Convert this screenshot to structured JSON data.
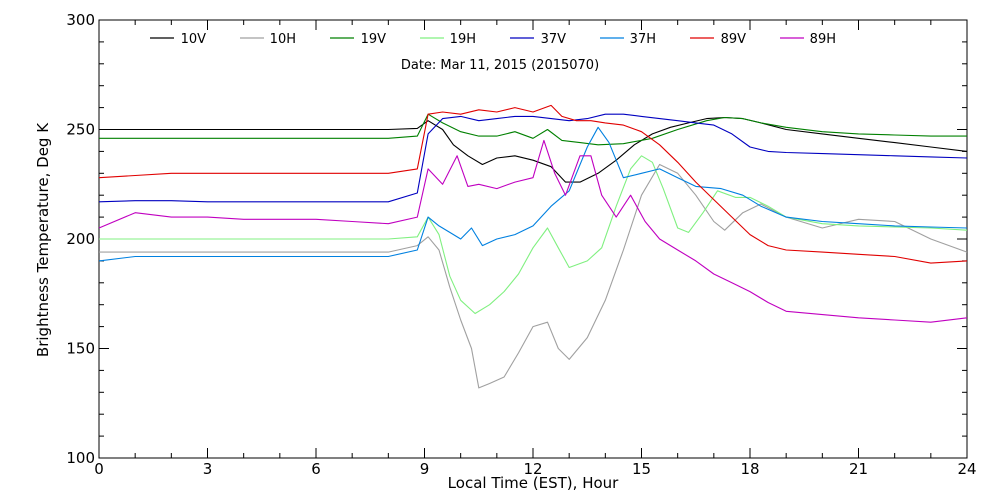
{
  "chart_data": {
    "type": "line",
    "title": "Date: Mar 11, 2015 (2015070)",
    "xlabel": "Local Time (EST), Hour",
    "ylabel": "Brightness Temperature, Deg K",
    "xlim": [
      0,
      24
    ],
    "ylim": [
      100,
      300
    ],
    "xticks": [
      0,
      3,
      6,
      9,
      12,
      15,
      18,
      21,
      24
    ],
    "yticks": [
      100,
      150,
      200,
      250,
      300
    ],
    "grid": false,
    "legend_position": "top",
    "series": [
      {
        "name": "10V",
        "color": "#000000",
        "points": [
          [
            0,
            250
          ],
          [
            1,
            250
          ],
          [
            2,
            250
          ],
          [
            3,
            250
          ],
          [
            4,
            250
          ],
          [
            5,
            250
          ],
          [
            6,
            250
          ],
          [
            7,
            250
          ],
          [
            8,
            250
          ],
          [
            8.8,
            250.5
          ],
          [
            9.1,
            254
          ],
          [
            9.5,
            250
          ],
          [
            9.8,
            243
          ],
          [
            10.2,
            238
          ],
          [
            10.6,
            234
          ],
          [
            11,
            237
          ],
          [
            11.5,
            238
          ],
          [
            12,
            236
          ],
          [
            12.5,
            233
          ],
          [
            12.9,
            226
          ],
          [
            13.3,
            226
          ],
          [
            13.8,
            230
          ],
          [
            14.3,
            236
          ],
          [
            14.8,
            243
          ],
          [
            15.3,
            248
          ],
          [
            15.8,
            251
          ],
          [
            16.3,
            253
          ],
          [
            16.8,
            255
          ],
          [
            17.3,
            255.5
          ],
          [
            17.8,
            255
          ],
          [
            18.3,
            253
          ],
          [
            19,
            250
          ],
          [
            20,
            248
          ],
          [
            21,
            246
          ],
          [
            22,
            244
          ],
          [
            23,
            242
          ],
          [
            24,
            240
          ]
        ]
      },
      {
        "name": "10H",
        "color": "#a0a0a0",
        "points": [
          [
            0,
            194
          ],
          [
            1,
            194
          ],
          [
            2,
            194
          ],
          [
            3,
            194
          ],
          [
            4,
            194
          ],
          [
            5,
            194
          ],
          [
            6,
            194
          ],
          [
            7,
            194
          ],
          [
            8,
            194
          ],
          [
            8.8,
            197
          ],
          [
            9.1,
            201
          ],
          [
            9.4,
            195
          ],
          [
            9.7,
            178
          ],
          [
            10,
            163
          ],
          [
            10.3,
            150
          ],
          [
            10.5,
            132
          ],
          [
            10.8,
            134
          ],
          [
            11.2,
            137
          ],
          [
            11.6,
            148
          ],
          [
            12,
            160
          ],
          [
            12.4,
            162
          ],
          [
            12.7,
            150
          ],
          [
            13,
            145
          ],
          [
            13.5,
            155
          ],
          [
            14,
            172
          ],
          [
            14.5,
            195
          ],
          [
            15,
            220
          ],
          [
            15.5,
            234
          ],
          [
            16,
            230
          ],
          [
            16.5,
            220
          ],
          [
            17,
            208
          ],
          [
            17.3,
            204
          ],
          [
            17.8,
            212
          ],
          [
            18.3,
            216
          ],
          [
            19,
            210
          ],
          [
            20,
            205
          ],
          [
            21,
            209
          ],
          [
            22,
            208
          ],
          [
            23,
            200
          ],
          [
            24,
            194
          ]
        ]
      },
      {
        "name": "19V",
        "color": "#008000",
        "points": [
          [
            0,
            246
          ],
          [
            1,
            246
          ],
          [
            2,
            246
          ],
          [
            3,
            246
          ],
          [
            4,
            246
          ],
          [
            5,
            246
          ],
          [
            6,
            246
          ],
          [
            7,
            246
          ],
          [
            8,
            246
          ],
          [
            8.8,
            247
          ],
          [
            9.1,
            257
          ],
          [
            9.5,
            253
          ],
          [
            10,
            249
          ],
          [
            10.5,
            247
          ],
          [
            11,
            247
          ],
          [
            11.5,
            249
          ],
          [
            12,
            246
          ],
          [
            12.4,
            250
          ],
          [
            12.8,
            245
          ],
          [
            13.3,
            244
          ],
          [
            13.8,
            243
          ],
          [
            14.5,
            243.5
          ],
          [
            15.3,
            246
          ],
          [
            16,
            250
          ],
          [
            16.8,
            254
          ],
          [
            17.3,
            255.5
          ],
          [
            17.8,
            255
          ],
          [
            18.3,
            253
          ],
          [
            19,
            251
          ],
          [
            20,
            249
          ],
          [
            21,
            248
          ],
          [
            22,
            247.5
          ],
          [
            23,
            247
          ],
          [
            24,
            247
          ]
        ]
      },
      {
        "name": "19H",
        "color": "#80f080",
        "points": [
          [
            0,
            200
          ],
          [
            1,
            200
          ],
          [
            2,
            200
          ],
          [
            3,
            200
          ],
          [
            4,
            200
          ],
          [
            5,
            200
          ],
          [
            6,
            200
          ],
          [
            7,
            200
          ],
          [
            8,
            200
          ],
          [
            8.8,
            201
          ],
          [
            9.1,
            210
          ],
          [
            9.4,
            202
          ],
          [
            9.7,
            183
          ],
          [
            10,
            172
          ],
          [
            10.4,
            166
          ],
          [
            10.8,
            170
          ],
          [
            11.2,
            176
          ],
          [
            11.6,
            184
          ],
          [
            12,
            196
          ],
          [
            12.4,
            205
          ],
          [
            12.7,
            196
          ],
          [
            13,
            187
          ],
          [
            13.5,
            190
          ],
          [
            13.9,
            196
          ],
          [
            14.3,
            215
          ],
          [
            14.7,
            232
          ],
          [
            15,
            238
          ],
          [
            15.3,
            235
          ],
          [
            15.6,
            223
          ],
          [
            16,
            205
          ],
          [
            16.3,
            203
          ],
          [
            16.7,
            212
          ],
          [
            17.1,
            222
          ],
          [
            17.6,
            219
          ],
          [
            18,
            219
          ],
          [
            18.5,
            215
          ],
          [
            19,
            210
          ],
          [
            20,
            207
          ],
          [
            21,
            206
          ],
          [
            22,
            205.5
          ],
          [
            23,
            205
          ],
          [
            24,
            204
          ]
        ]
      },
      {
        "name": "37V",
        "color": "#0000c0",
        "points": [
          [
            0,
            217
          ],
          [
            1,
            217.5
          ],
          [
            2,
            217.5
          ],
          [
            3,
            217
          ],
          [
            4,
            217
          ],
          [
            5,
            217
          ],
          [
            6,
            217
          ],
          [
            7,
            217
          ],
          [
            8,
            217
          ],
          [
            8.8,
            221
          ],
          [
            9.1,
            248
          ],
          [
            9.5,
            255
          ],
          [
            10,
            256
          ],
          [
            10.5,
            254
          ],
          [
            11,
            255
          ],
          [
            11.5,
            256
          ],
          [
            12,
            256
          ],
          [
            12.5,
            255
          ],
          [
            13,
            254
          ],
          [
            13.5,
            255
          ],
          [
            14,
            257
          ],
          [
            14.5,
            257
          ],
          [
            15,
            256
          ],
          [
            15.5,
            255
          ],
          [
            16,
            254
          ],
          [
            16.5,
            253
          ],
          [
            17,
            252
          ],
          [
            17.5,
            248
          ],
          [
            18,
            242
          ],
          [
            18.5,
            240
          ],
          [
            19,
            239.5
          ],
          [
            20,
            239
          ],
          [
            21,
            238.5
          ],
          [
            22,
            238
          ],
          [
            23,
            237.5
          ],
          [
            24,
            237
          ]
        ]
      },
      {
        "name": "37H",
        "color": "#0080e0",
        "points": [
          [
            0,
            190
          ],
          [
            1,
            192
          ],
          [
            2,
            192
          ],
          [
            3,
            192
          ],
          [
            4,
            192
          ],
          [
            5,
            192
          ],
          [
            6,
            192
          ],
          [
            7,
            192
          ],
          [
            8,
            192
          ],
          [
            8.8,
            195
          ],
          [
            9.1,
            210
          ],
          [
            9.4,
            206
          ],
          [
            9.7,
            203
          ],
          [
            10,
            200
          ],
          [
            10.3,
            205
          ],
          [
            10.6,
            197
          ],
          [
            11,
            200
          ],
          [
            11.5,
            202
          ],
          [
            12,
            206
          ],
          [
            12.5,
            215
          ],
          [
            13,
            222
          ],
          [
            13.5,
            242
          ],
          [
            13.8,
            251
          ],
          [
            14.1,
            244
          ],
          [
            14.5,
            228
          ],
          [
            15,
            230
          ],
          [
            15.5,
            232
          ],
          [
            16,
            228
          ],
          [
            16.5,
            224
          ],
          [
            17.2,
            223
          ],
          [
            17.8,
            220
          ],
          [
            18.3,
            215
          ],
          [
            19,
            210
          ],
          [
            20,
            208
          ],
          [
            21,
            207
          ],
          [
            22,
            206
          ],
          [
            23,
            205.5
          ],
          [
            24,
            205
          ]
        ]
      },
      {
        "name": "89V",
        "color": "#e00000",
        "points": [
          [
            0,
            228
          ],
          [
            1,
            229
          ],
          [
            2,
            230
          ],
          [
            3,
            230
          ],
          [
            4,
            230
          ],
          [
            5,
            230
          ],
          [
            6,
            230
          ],
          [
            7,
            230
          ],
          [
            8,
            230
          ],
          [
            8.8,
            232
          ],
          [
            9.1,
            257
          ],
          [
            9.5,
            258
          ],
          [
            10,
            257
          ],
          [
            10.5,
            259
          ],
          [
            11,
            258
          ],
          [
            11.5,
            260
          ],
          [
            12,
            258
          ],
          [
            12.5,
            261
          ],
          [
            12.8,
            256
          ],
          [
            13.2,
            254
          ],
          [
            13.6,
            254
          ],
          [
            14,
            253
          ],
          [
            14.5,
            252
          ],
          [
            15,
            249
          ],
          [
            15.5,
            243
          ],
          [
            16,
            235
          ],
          [
            16.5,
            226
          ],
          [
            17,
            218
          ],
          [
            17.5,
            210
          ],
          [
            18,
            202
          ],
          [
            18.5,
            197
          ],
          [
            19,
            195
          ],
          [
            20,
            194
          ],
          [
            21,
            193
          ],
          [
            22,
            192
          ],
          [
            23,
            189
          ],
          [
            24,
            190
          ]
        ]
      },
      {
        "name": "89H",
        "color": "#c000c0",
        "points": [
          [
            0,
            205
          ],
          [
            1,
            212
          ],
          [
            2,
            210
          ],
          [
            3,
            210
          ],
          [
            4,
            209
          ],
          [
            5,
            209
          ],
          [
            6,
            209
          ],
          [
            7,
            208
          ],
          [
            8,
            207
          ],
          [
            8.8,
            210
          ],
          [
            9.1,
            232
          ],
          [
            9.5,
            225
          ],
          [
            9.9,
            238
          ],
          [
            10.2,
            224
          ],
          [
            10.5,
            225
          ],
          [
            11,
            223
          ],
          [
            11.5,
            226
          ],
          [
            12,
            228
          ],
          [
            12.3,
            245
          ],
          [
            12.6,
            230
          ],
          [
            12.9,
            220
          ],
          [
            13.3,
            238
          ],
          [
            13.6,
            238
          ],
          [
            13.9,
            220
          ],
          [
            14.3,
            210
          ],
          [
            14.7,
            220
          ],
          [
            15.1,
            208
          ],
          [
            15.5,
            200
          ],
          [
            16,
            195
          ],
          [
            16.5,
            190
          ],
          [
            17,
            184
          ],
          [
            17.5,
            180
          ],
          [
            18,
            176
          ],
          [
            18.5,
            171
          ],
          [
            19,
            167
          ],
          [
            20,
            165.5
          ],
          [
            21,
            164
          ],
          [
            22,
            163
          ],
          [
            23,
            162
          ],
          [
            24,
            164
          ]
        ]
      }
    ]
  }
}
